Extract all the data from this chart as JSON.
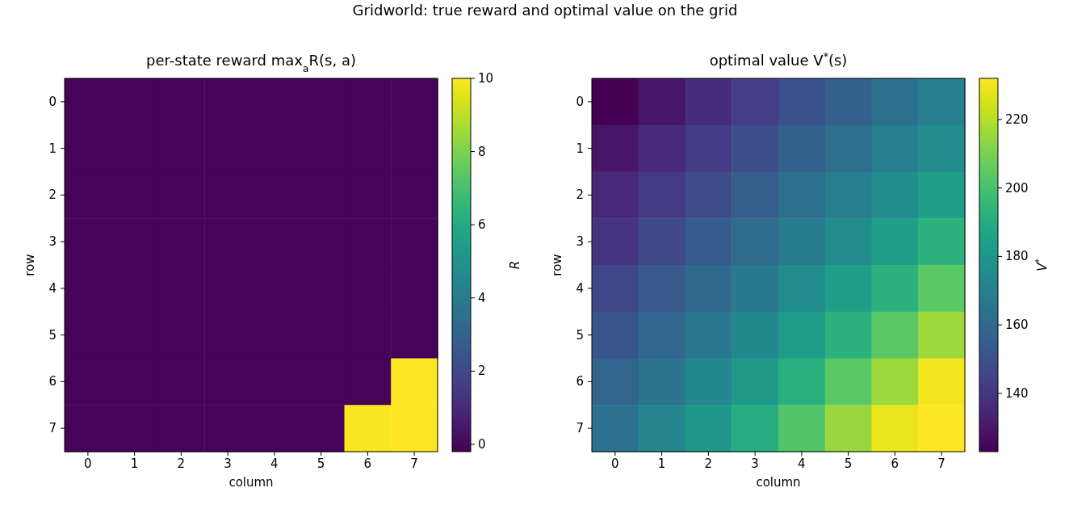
{
  "chart_data": [
    {
      "type": "heatmap",
      "title": "per-state reward max$_{a}$R(s, a)",
      "xlabel": "column",
      "ylabel": "row",
      "clabel": "R",
      "annotations": [
        "Gridworld: true reward and optimal value on the grid"
      ],
      "categories": [
        "0",
        "1",
        "2",
        "3",
        "4",
        "5",
        "6",
        "7"
      ],
      "y_categories": [
        "0",
        "1",
        "2",
        "3",
        "4",
        "5",
        "6",
        "7"
      ],
      "cells": [
        [
          -0.1,
          -0.1,
          -0.1,
          -0.1,
          -0.1,
          -0.1,
          -0.1,
          -0.1
        ],
        [
          -0.1,
          -0.1,
          -0.1,
          -0.1,
          -0.1,
          -0.1,
          -0.1,
          -0.1
        ],
        [
          -0.1,
          -0.1,
          -0.1,
          -0.1,
          -0.1,
          -0.1,
          -0.1,
          -0.1
        ],
        [
          -0.1,
          -0.1,
          -0.1,
          -0.1,
          -0.1,
          -0.1,
          -0.1,
          -0.1
        ],
        [
          -0.1,
          -0.1,
          -0.1,
          -0.1,
          -0.1,
          -0.1,
          -0.1,
          -0.1
        ],
        [
          -0.1,
          -0.1,
          -0.1,
          -0.1,
          -0.1,
          -0.1,
          -0.1,
          -0.1
        ],
        [
          -0.1,
          -0.1,
          -0.1,
          -0.1,
          -0.1,
          -0.1,
          -0.1,
          10
        ],
        [
          -0.1,
          -0.1,
          -0.1,
          -0.1,
          -0.1,
          -0.1,
          9.9,
          10
        ]
      ],
      "clim": [
        -0.2,
        10
      ],
      "cticks": [
        0,
        2,
        4,
        6,
        8,
        10
      ]
    },
    {
      "type": "heatmap",
      "title": "optimal value V$^{*}$(s)",
      "xlabel": "column",
      "ylabel": "row",
      "clabel": "V$^{*}$",
      "categories": [
        "0",
        "1",
        "2",
        "3",
        "4",
        "5",
        "6",
        "7"
      ],
      "y_categories": [
        "0",
        "1",
        "2",
        "3",
        "4",
        "5",
        "6",
        "7"
      ],
      "cells": [
        [
          123,
          129,
          137,
          143,
          150,
          156,
          163,
          169
        ],
        [
          129,
          136,
          142,
          149,
          156,
          162,
          169,
          175
        ],
        [
          135,
          141,
          148,
          155,
          162,
          169,
          176,
          184
        ],
        [
          140,
          147,
          154,
          161,
          168,
          175,
          184,
          193
        ],
        [
          146,
          153,
          160,
          167,
          175,
          184,
          193,
          204
        ],
        [
          152,
          159,
          166,
          174,
          183,
          193,
          204,
          216
        ],
        [
          158,
          165,
          173,
          182,
          192,
          204,
          216,
          230
        ],
        [
          164,
          172,
          181,
          191,
          203,
          215,
          229,
          232
        ]
      ],
      "clim": [
        123,
        232
      ],
      "cticks": [
        140,
        160,
        180,
        200,
        220
      ]
    }
  ]
}
